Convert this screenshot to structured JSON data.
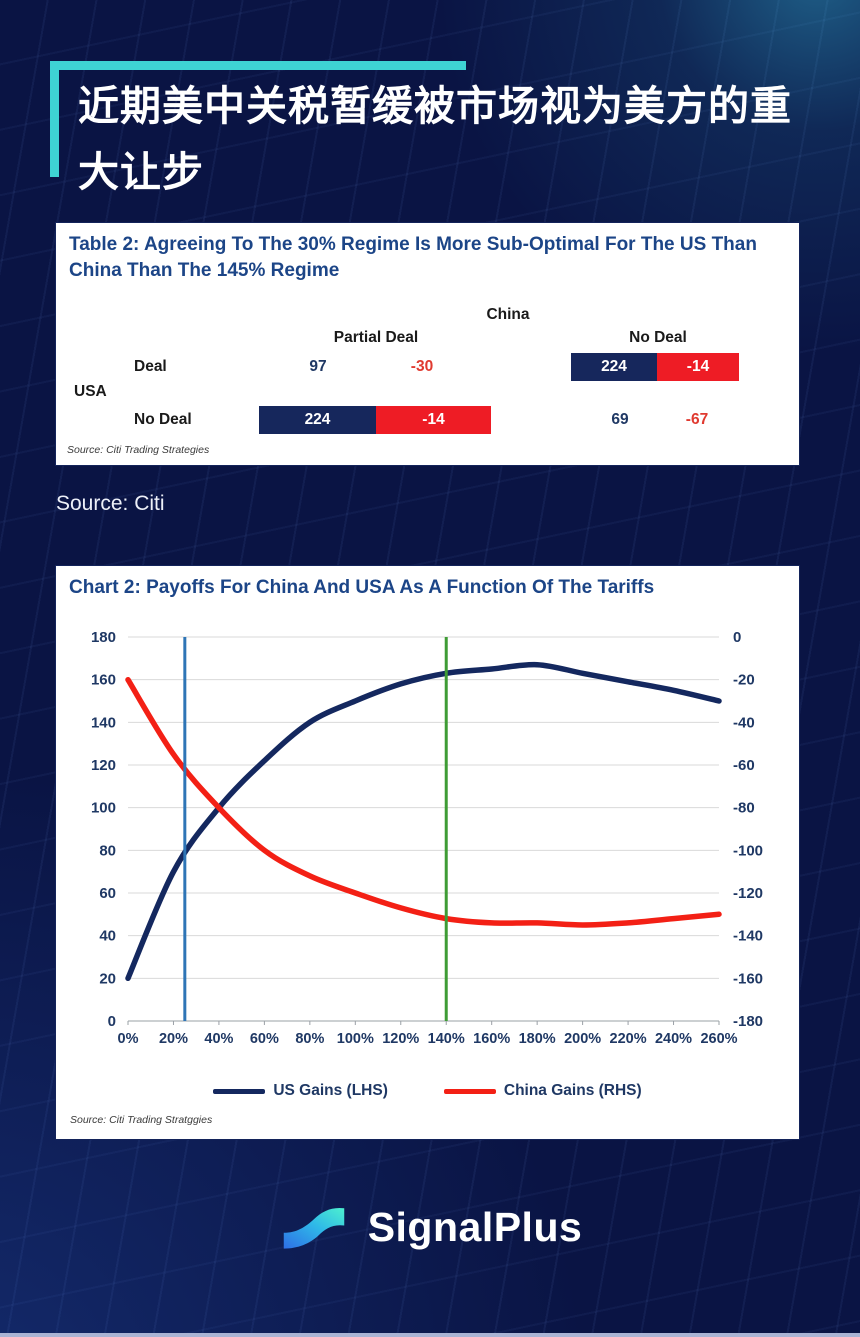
{
  "page": {
    "background_color": "#0a1444",
    "accent_color": "#3ed3d3",
    "title_line1": "近期美中关税暂缓被市场视为美方的重",
    "title_line2": "大让步",
    "source_note": "Source: Citi"
  },
  "table_card": {
    "title": "Table 2: Agreeing To The 30% Regime Is More Sub-Optimal For The US Than China Than The 145% Regime",
    "column_group": "China",
    "row_group": "USA",
    "column_headers": {
      "partial_deal": "Partial Deal",
      "no_deal": "No Deal"
    },
    "row_headers": {
      "deal": "Deal",
      "no_deal": "No Deal"
    },
    "payoffs": {
      "deal_partial": {
        "us": "97",
        "china": "-30",
        "highlighted": false
      },
      "deal_nodeal": {
        "us": "224",
        "china": "-14",
        "highlighted": true
      },
      "nodeal_partial": {
        "us": "224",
        "china": "-14",
        "highlighted": true
      },
      "nodeal_nodeal": {
        "us": "69",
        "china": "-67",
        "highlighted": false
      }
    },
    "colors": {
      "us_text": "#1f3864",
      "china_text": "#e03a30",
      "us_cell_bg": "#16275c",
      "china_cell_bg": "#ee1c25"
    },
    "source": "Source: Citi Trading Strategies"
  },
  "chart_card": {
    "title": "Chart 2: Payoffs For China And USA As A Function Of The Tariffs",
    "source": "Source: Citi Trading Stratggies"
  },
  "chart_data": {
    "type": "line",
    "title": "Chart 2: Payoffs For China And USA As A Function Of The Tariffs",
    "categories": [
      "0%",
      "20%",
      "40%",
      "60%",
      "80%",
      "100%",
      "120%",
      "140%",
      "160%",
      "180%",
      "200%",
      "220%",
      "240%",
      "260%"
    ],
    "series": [
      {
        "name": "US Gains (LHS)",
        "axis": "left",
        "color": "#14285f",
        "values": [
          20,
          70,
          100,
          122,
          140,
          150,
          158,
          163,
          165,
          167,
          163,
          159,
          155,
          150
        ]
      },
      {
        "name": "China Gains (RHS)",
        "axis": "right",
        "color": "#f32015",
        "values": [
          -20,
          -55,
          -80,
          -100,
          -112,
          -120,
          -127,
          -132,
          -134,
          -134,
          -135,
          -134,
          -132,
          -130
        ]
      }
    ],
    "left_axis": {
      "min": 0,
      "max": 180,
      "step": 20
    },
    "right_axis": {
      "min": -180,
      "max": 0,
      "step": 20
    },
    "x_max_percent": 260,
    "vertical_lines": [
      {
        "at_percent": 25,
        "color": "#2e75b6"
      },
      {
        "at_percent": 140,
        "color": "#3f9c35"
      }
    ],
    "grid": true,
    "legend_position": "bottom"
  },
  "footer": {
    "brand": "SignalPlus"
  }
}
